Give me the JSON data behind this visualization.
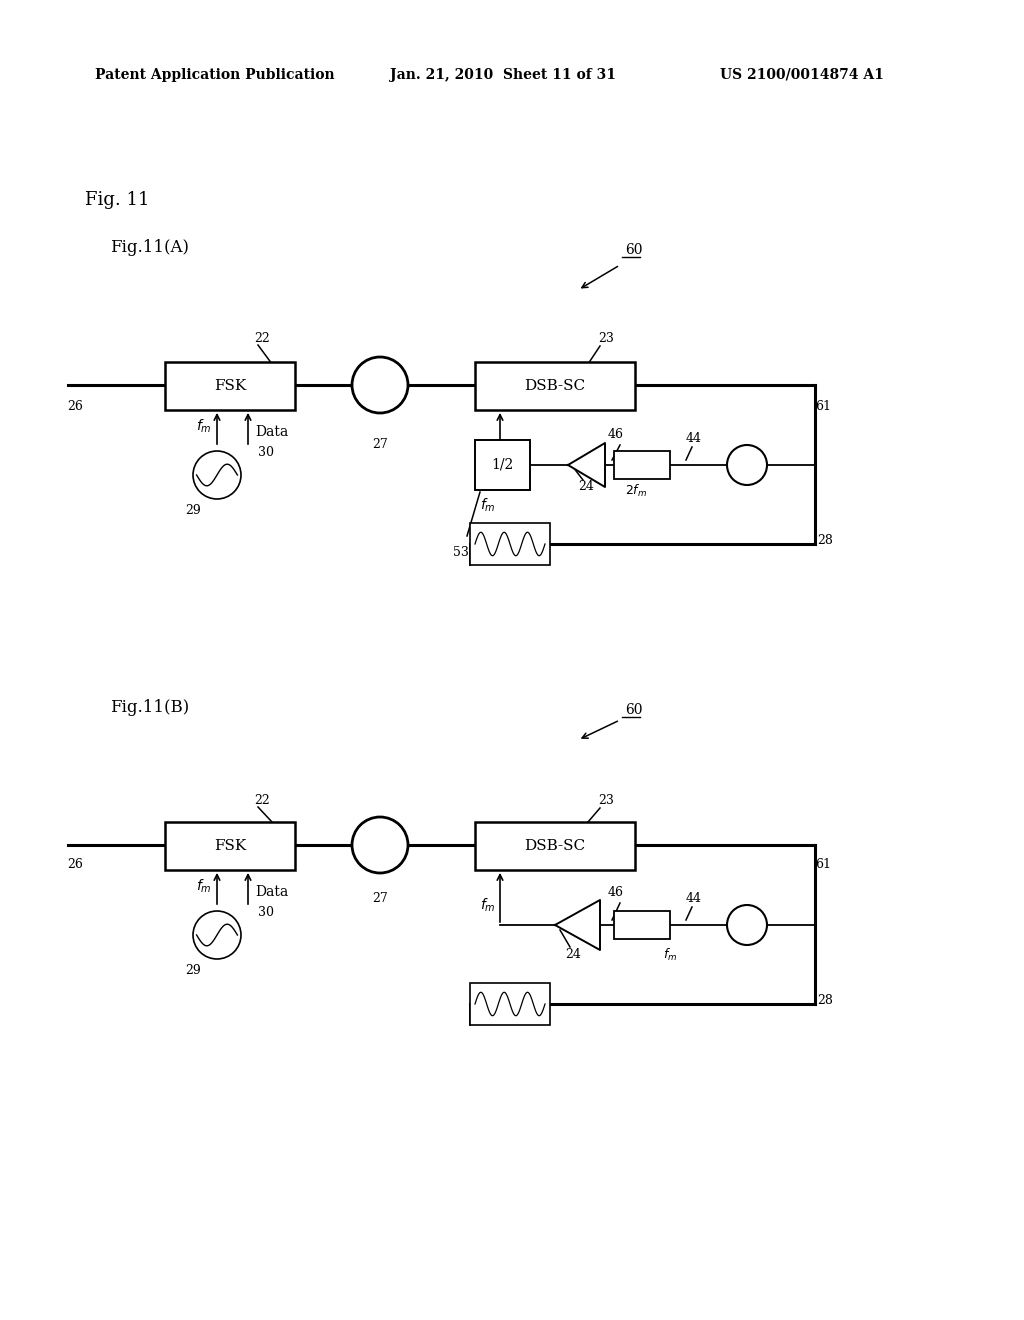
{
  "bg_color": "#ffffff",
  "header_left": "Patent Application Publication",
  "header_mid": "Jan. 21, 2010  Sheet 11 of 31",
  "header_right": "US 2100/0014874 A1",
  "fig_label": "Fig. 11",
  "fig_A_label": "Fig.11(A)",
  "fig_B_label": "Fig.11(B)",
  "line_color": "#000000"
}
